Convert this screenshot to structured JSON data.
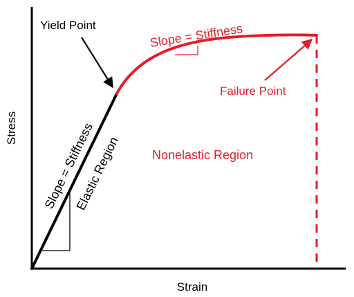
{
  "labels": {
    "x_axis": "Strain",
    "y_axis": "Stress",
    "yield_point": "Yield Point",
    "failure_point": "Failure Point",
    "elastic_slope": "Slope = Stiffness",
    "elastic_region": "Elastic Region",
    "plastic_slope": "Slope = Stiffness",
    "nonelastic_region": "Nonelastic Region"
  },
  "colors": {
    "axis": "#000000",
    "elastic": "#000000",
    "plastic": "#e41e26",
    "background": "#ffffff"
  }
}
